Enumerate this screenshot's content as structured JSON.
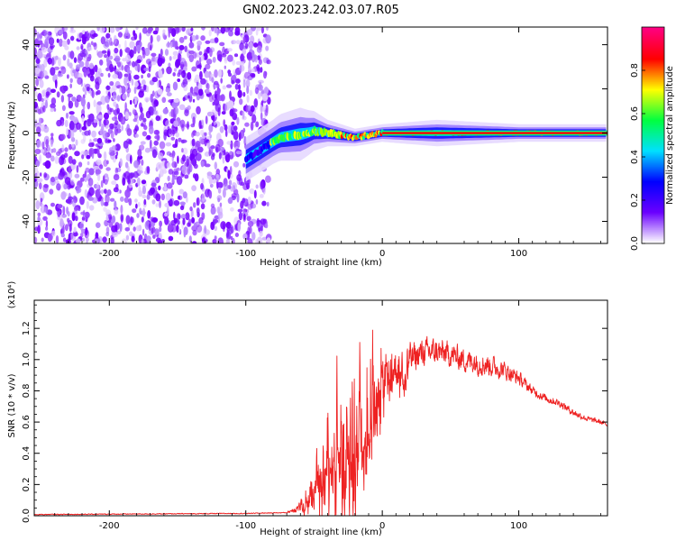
{
  "title": "GN02.2023.242.03.07.R05",
  "chart_data": [
    {
      "type": "heatmap",
      "xlabel": "Height of straight line (km)",
      "ylabel": "Frequency (Hz)",
      "xlim": [
        -255,
        165
      ],
      "ylim": [
        -50,
        48
      ],
      "x_ticks": [
        -200,
        -100,
        0,
        100
      ],
      "y_ticks": [
        -40,
        -20,
        0,
        20,
        40
      ],
      "colorbar": {
        "label": "Normalized spectral amplitude",
        "range": [
          0,
          1
        ],
        "ticks": [
          "0.0",
          "0.2",
          "0.4",
          "0.6",
          "0.8"
        ],
        "colors": [
          "#ffffff",
          "#6a00ff",
          "#0000ff",
          "#00e0ff",
          "#00ff40",
          "#ffff00",
          "#ff0000",
          "#ff0080"
        ]
      },
      "features": {
        "noise_region_x": [
          -255,
          -83
        ],
        "trace_frequency_hz": [
          [
            -100,
            -12
          ],
          [
            -85,
            -6
          ],
          [
            -75,
            -2
          ],
          [
            -65,
            -1
          ],
          [
            -55,
            0
          ],
          [
            -50,
            1
          ],
          [
            -40,
            0
          ],
          [
            -30,
            -1
          ],
          [
            -20,
            -2
          ],
          [
            -10,
            -1
          ],
          [
            0,
            0
          ],
          [
            50,
            0
          ],
          [
            165,
            0
          ]
        ],
        "band_halfwidth_hz": [
          [
            -100,
            5
          ],
          [
            -80,
            5
          ],
          [
            -60,
            6
          ],
          [
            -40,
            3
          ],
          [
            -20,
            2
          ],
          [
            0,
            2
          ],
          [
            40,
            3
          ],
          [
            100,
            2
          ],
          [
            165,
            2
          ]
        ]
      }
    },
    {
      "type": "line",
      "xlabel": "Height of straight line (km)",
      "ylabel": "SNR (10 * v/v)",
      "y_multiplier": "(x10⁴)",
      "xlim": [
        -255,
        165
      ],
      "ylim": [
        0,
        1.38
      ],
      "x_ticks": [
        -200,
        -100,
        0,
        100
      ],
      "y_ticks": [
        "0.0",
        "0.2",
        "0.4",
        "0.6",
        "0.8",
        "1.0",
        "1.2"
      ],
      "line_color": "#ee2222",
      "envelope_mean": [
        [
          -255,
          0.008
        ],
        [
          -100,
          0.015
        ],
        [
          -70,
          0.02
        ],
        [
          -60,
          0.06
        ],
        [
          -50,
          0.12
        ],
        [
          -40,
          0.3
        ],
        [
          -30,
          0.45
        ],
        [
          -20,
          0.55
        ],
        [
          -10,
          0.75
        ],
        [
          0,
          0.9
        ],
        [
          10,
          0.95
        ],
        [
          20,
          1.0
        ],
        [
          30,
          1.05
        ],
        [
          40,
          1.05
        ],
        [
          50,
          1.03
        ],
        [
          60,
          1.0
        ],
        [
          70,
          0.98
        ],
        [
          80,
          0.96
        ],
        [
          90,
          0.93
        ],
        [
          100,
          0.88
        ],
        [
          110,
          0.8
        ],
        [
          120,
          0.75
        ],
        [
          130,
          0.72
        ],
        [
          140,
          0.66
        ],
        [
          150,
          0.62
        ],
        [
          160,
          0.6
        ],
        [
          165,
          0.58
        ]
      ],
      "envelope_spread": [
        [
          -255,
          0.004
        ],
        [
          -70,
          0.004
        ],
        [
          -50,
          0.1
        ],
        [
          -40,
          0.25
        ],
        [
          -30,
          0.35
        ],
        [
          -20,
          0.4
        ],
        [
          -10,
          0.3
        ],
        [
          0,
          0.2
        ],
        [
          30,
          0.12
        ],
        [
          80,
          0.1
        ],
        [
          110,
          0.04
        ],
        [
          165,
          0.02
        ]
      ]
    }
  ]
}
